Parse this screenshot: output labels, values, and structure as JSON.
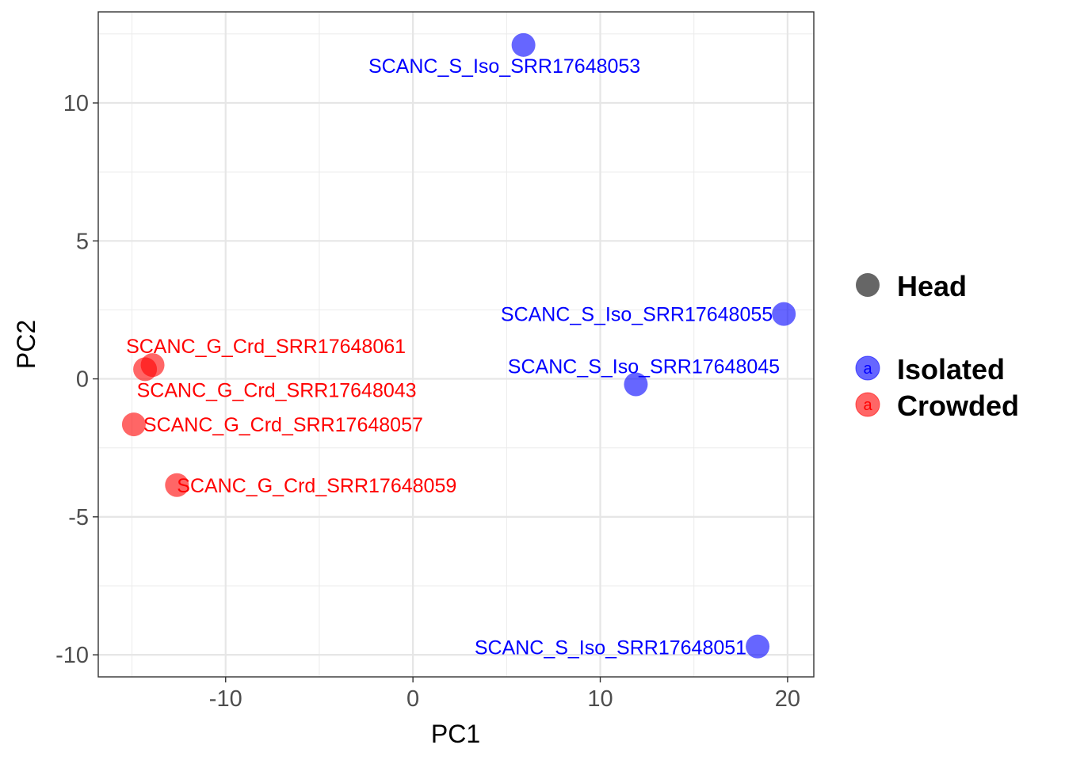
{
  "chart_data": {
    "type": "scatter",
    "title": "",
    "xlabel": "PC1",
    "ylabel": "PC2",
    "xlim": [
      -16.8,
      21.4
    ],
    "ylim": [
      -10.8,
      13.3
    ],
    "xticks": [
      -10,
      0,
      10,
      20
    ],
    "xtick_labels": [
      "-10",
      "0",
      "10",
      "20"
    ],
    "yticks": [
      10,
      5,
      0,
      -5,
      -10
    ],
    "ytick_labels": [
      "10",
      "5",
      "0",
      "-5",
      "-10"
    ],
    "grid": true,
    "legend_position": "right",
    "colors": {
      "Isolated": "#0000ff",
      "Crowded": "#ff0000",
      "shape_key": "#666666"
    },
    "legend": {
      "shape_title": "Head",
      "color_entries": [
        {
          "name": "Isolated",
          "key_letter": "a"
        },
        {
          "name": "Crowded",
          "key_letter": "a"
        }
      ]
    },
    "series": [
      {
        "name": "Isolated",
        "points": [
          {
            "label": "SCANC_S_Iso_SRR17648053",
            "x": 5.9,
            "y": 12.1
          },
          {
            "label": "SCANC_S_Iso_SRR17648055",
            "x": 19.8,
            "y": 2.35
          },
          {
            "label": "SCANC_S_Iso_SRR17648045",
            "x": 11.9,
            "y": -0.2
          },
          {
            "label": "SCANC_S_Iso_SRR17648051",
            "x": 18.4,
            "y": -9.7
          }
        ]
      },
      {
        "name": "Crowded",
        "points": [
          {
            "label": "SCANC_G_Crd_SRR17648061",
            "x": -13.9,
            "y": 0.5
          },
          {
            "label": "SCANC_G_Crd_SRR17648043",
            "x": -14.3,
            "y": 0.35
          },
          {
            "label": "SCANC_G_Crd_SRR17648057",
            "x": -14.9,
            "y": -1.65
          },
          {
            "label": "SCANC_G_Crd_SRR17648059",
            "x": -12.6,
            "y": -3.85
          }
        ]
      }
    ]
  }
}
